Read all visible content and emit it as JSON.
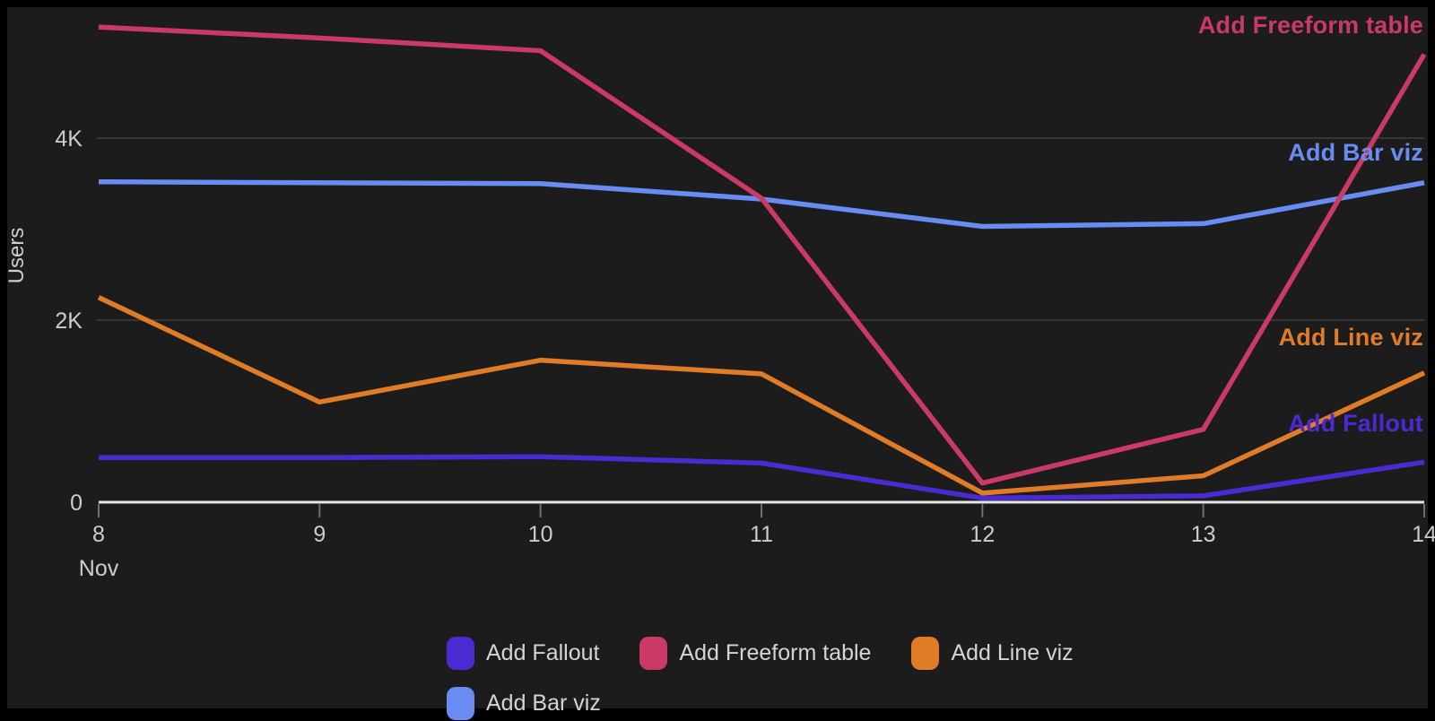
{
  "colors": {
    "panel_background": "#1c1c1c",
    "frame": "#000000",
    "gridline": "#3e3e3e",
    "axis_line": "#e6e6e6",
    "tick_mark": "#6f6f6f",
    "axis_text": "#cdcdcd",
    "legend_text": "#d4d4d4"
  },
  "chart_data": {
    "type": "line",
    "title": "",
    "ylabel": "Users",
    "xlabel": "",
    "x_month_label": "Nov",
    "categories": [
      "8",
      "9",
      "10",
      "11",
      "12",
      "13",
      "14"
    ],
    "y_ticks": [
      "0",
      "2K",
      "4K"
    ],
    "y_tick_values": [
      0,
      2000,
      4000
    ],
    "ylim": [
      0,
      5450
    ],
    "grid": "horizontal-only",
    "legend_position": "bottom",
    "series": [
      {
        "name": "Add Fallout",
        "color": "#4b2ad2",
        "values": [
          490,
          490,
          500,
          430,
          45,
          70,
          440
        ]
      },
      {
        "name": "Add Freeform table",
        "color": "#ca3a64",
        "values": [
          5220,
          5100,
          4960,
          3340,
          210,
          800,
          4920
        ]
      },
      {
        "name": "Add Line viz",
        "color": "#e07c28",
        "values": [
          2250,
          1100,
          1560,
          1410,
          100,
          290,
          1420
        ]
      },
      {
        "name": "Add Bar viz",
        "color": "#698cf2",
        "values": [
          3520,
          3510,
          3500,
          3330,
          3030,
          3060,
          3510
        ]
      }
    ],
    "direct_labels": [
      {
        "text": "Add Freeform table"
      },
      {
        "text": "Add Bar viz"
      },
      {
        "text": "Add Line viz"
      },
      {
        "text": "Add Fallout"
      }
    ]
  },
  "legend": {
    "items": [
      {
        "label": "Add Fallout",
        "color": "#4b2ad2"
      },
      {
        "label": "Add Freeform table",
        "color": "#ca3a64"
      },
      {
        "label": "Add Line viz",
        "color": "#e07c28"
      },
      {
        "label": "Add Bar viz",
        "color": "#698cf2"
      }
    ]
  }
}
